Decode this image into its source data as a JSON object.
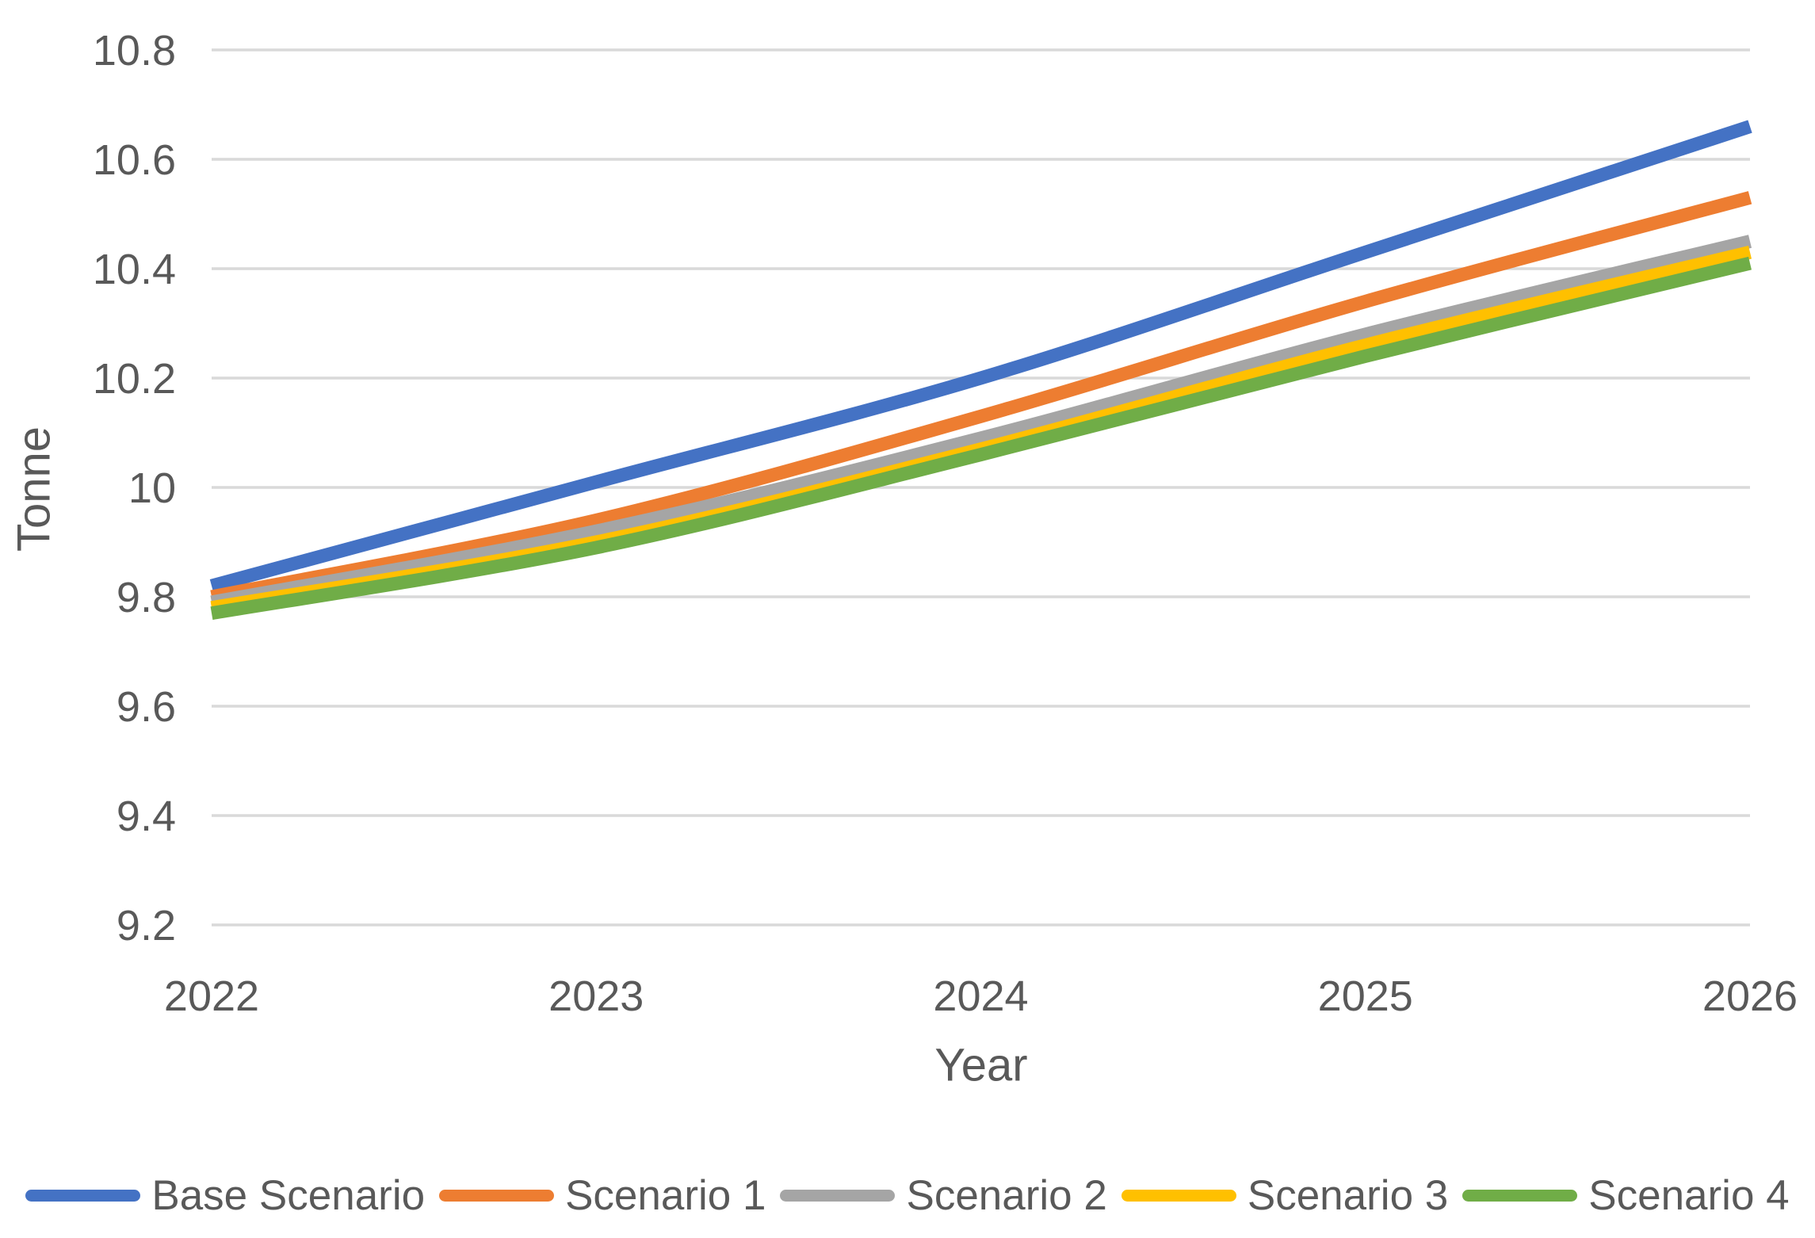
{
  "chart_data": {
    "type": "line",
    "title": "",
    "xlabel": "Year",
    "ylabel": "Tonne",
    "x": [
      "2022",
      "2023",
      "2024",
      "2025",
      "2026"
    ],
    "ylim": [
      9.2,
      10.8
    ],
    "ytick_step": 0.2,
    "ytick_labels": [
      "10.8",
      "10.6",
      "10.4",
      "10.2",
      "10",
      "9.8",
      "9.6",
      "9.4",
      "9.2"
    ],
    "grid": true,
    "legend_position": "bottom",
    "smoothed": true,
    "colors": {
      "gridline": "#d9d9d9",
      "tick_label": "#595959",
      "axis_title": "#595959",
      "legend_text": "#595959",
      "background": "#ffffff"
    },
    "series": [
      {
        "name": "Base Scenario",
        "color": "#4472C4",
        "values": [
          9.82,
          10.01,
          10.2,
          10.43,
          10.66
        ]
      },
      {
        "name": "Scenario 1",
        "color": "#ED7D31",
        "values": [
          9.8,
          9.94,
          10.13,
          10.34,
          10.53
        ]
      },
      {
        "name": "Scenario 2",
        "color": "#A5A5A5",
        "values": [
          9.79,
          9.92,
          10.09,
          10.28,
          10.45
        ]
      },
      {
        "name": "Scenario 3",
        "color": "#FFC000",
        "values": [
          9.78,
          9.9,
          10.07,
          10.26,
          10.43
        ]
      },
      {
        "name": "Scenario 4",
        "color": "#70AD47",
        "values": [
          9.77,
          9.89,
          10.06,
          10.24,
          10.41
        ]
      }
    ]
  }
}
